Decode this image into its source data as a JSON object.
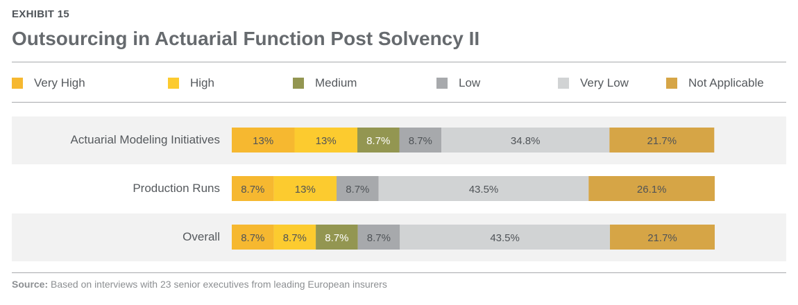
{
  "header": {
    "exhibit": "EXHIBIT 15",
    "title": "Outsourcing in Actuarial Function Post Solvency II"
  },
  "legend": [
    {
      "label": "Very High",
      "color": "#f6b830"
    },
    {
      "label": "High",
      "color": "#fccb2f"
    },
    {
      "label": "Medium",
      "color": "#939651"
    },
    {
      "label": "Low",
      "color": "#a7a9ac"
    },
    {
      "label": "Very Low",
      "color": "#d1d3d4"
    },
    {
      "label": "Not Applicable",
      "color": "#d6a546"
    }
  ],
  "footer": {
    "source_label": "Source:",
    "source_text": "Based on interviews with 23 senior executives from leading European insurers"
  },
  "chart_data": {
    "type": "bar",
    "orientation": "horizontal",
    "stacked": true,
    "categories": [
      "Actuarial Modeling Initiatives",
      "Production Runs",
      "Overall"
    ],
    "series": [
      {
        "name": "Very High",
        "color": "#f6b830",
        "values": [
          13,
          8.7,
          8.7
        ],
        "labels": [
          "13%",
          "8.7%",
          "8.7%"
        ]
      },
      {
        "name": "High",
        "color": "#fccb2f",
        "values": [
          13,
          13,
          8.7
        ],
        "labels": [
          "13%",
          "13%",
          "8.7%"
        ]
      },
      {
        "name": "Medium",
        "color": "#939651",
        "values": [
          8.7,
          0,
          8.7
        ],
        "labels": [
          "8.7%",
          "",
          "8.7%"
        ]
      },
      {
        "name": "Low",
        "color": "#a7a9ac",
        "values": [
          8.7,
          8.7,
          8.7
        ],
        "labels": [
          "8.7%",
          "8.7%",
          "8.7%"
        ]
      },
      {
        "name": "Very Low",
        "color": "#d1d3d4",
        "values": [
          34.8,
          43.5,
          43.5
        ],
        "labels": [
          "34.8%",
          "43.5%",
          "43.5%"
        ]
      },
      {
        "name": "Not Applicable",
        "color": "#d6a546",
        "values": [
          21.7,
          26.1,
          21.7
        ],
        "labels": [
          "21.7%",
          "26.1%",
          "21.7%"
        ]
      }
    ],
    "xlim": [
      0,
      100
    ],
    "grid": false,
    "legend_position": "top"
  }
}
